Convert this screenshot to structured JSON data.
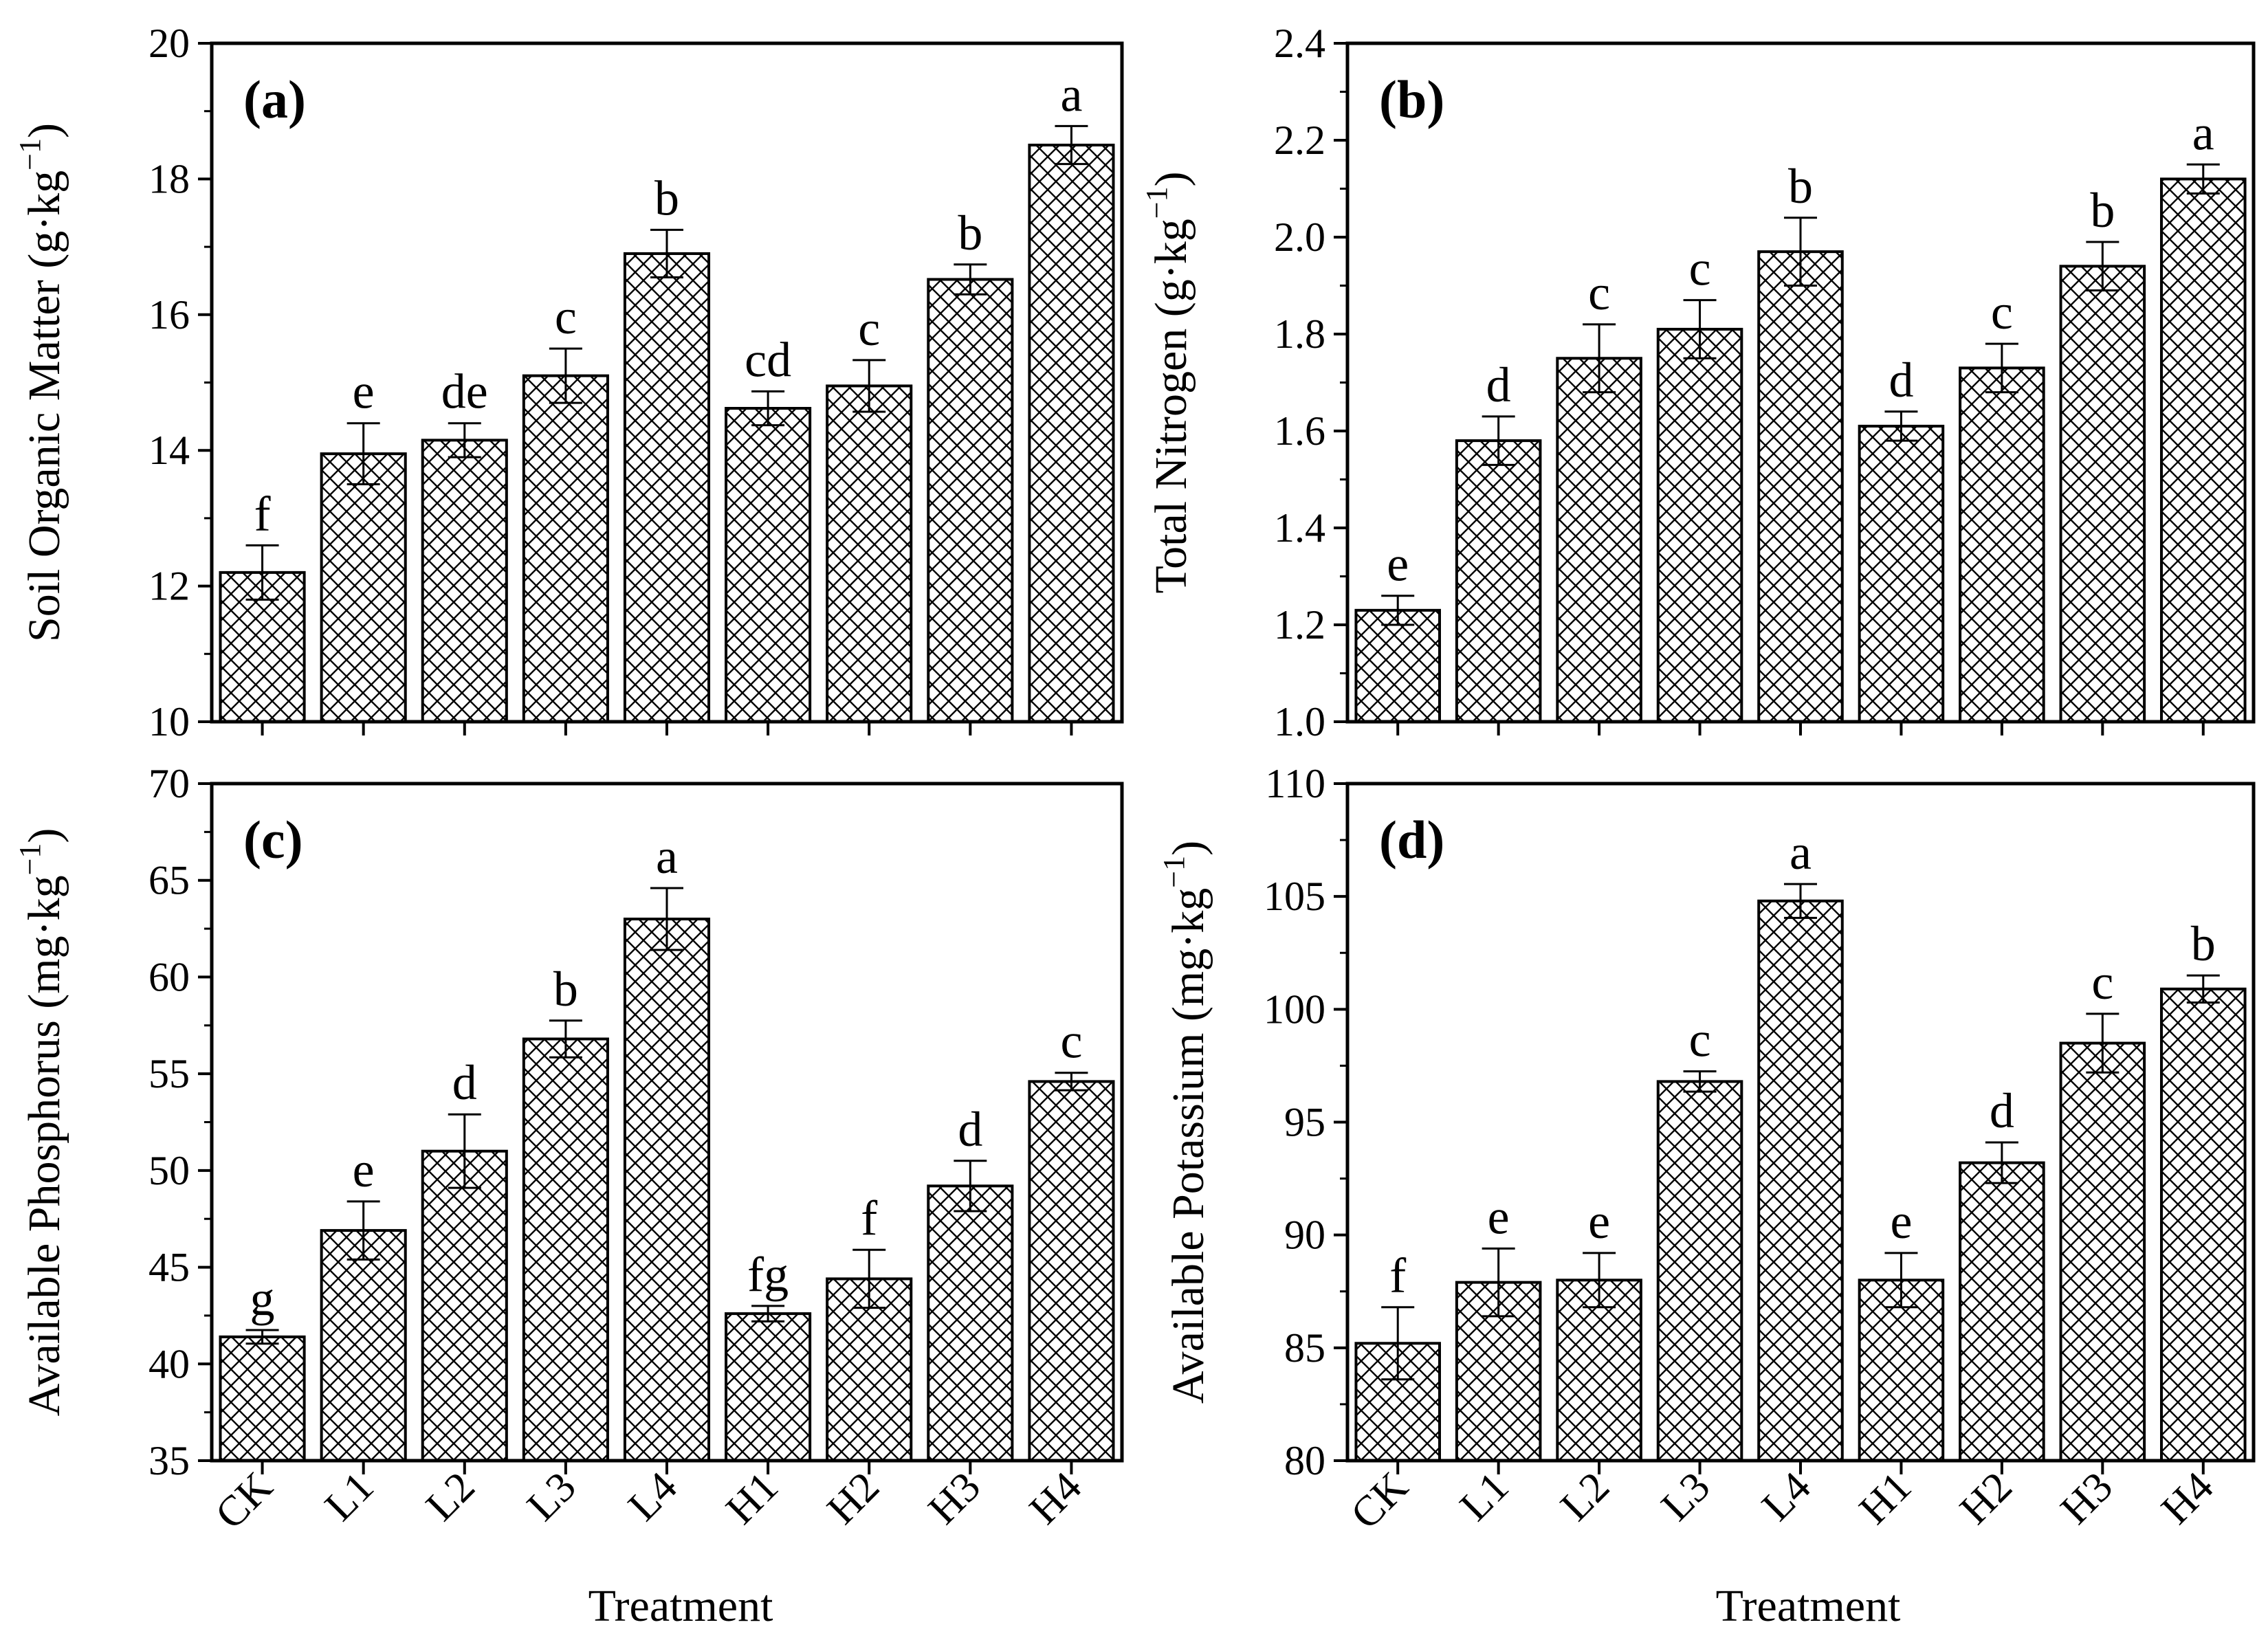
{
  "figure": {
    "xlabel": "Treatment",
    "categories": [
      "CK",
      "L1",
      "L2",
      "L3",
      "L4",
      "H1",
      "H2",
      "H3",
      "H4"
    ]
  },
  "chart_data": [
    {
      "type": "bar",
      "panel_label": "(a)",
      "ylabel_main": "Soil Organic  Matter (g·kg",
      "ylabel_sup": "−1",
      "ylabel_close": ")",
      "ylim": [
        10,
        20
      ],
      "yticks": [
        10,
        12,
        14,
        16,
        18,
        20
      ],
      "ytick_labels": [
        "10",
        "12",
        "14",
        "16",
        "18",
        "20"
      ],
      "categories": [
        "CK",
        "L1",
        "L2",
        "L3",
        "L4",
        "H1",
        "H2",
        "H3",
        "H4"
      ],
      "values": [
        12.2,
        13.95,
        14.15,
        15.1,
        16.9,
        14.62,
        14.95,
        16.52,
        18.5
      ],
      "errors": [
        0.4,
        0.45,
        0.25,
        0.4,
        0.35,
        0.25,
        0.38,
        0.22,
        0.28
      ],
      "letters": [
        "f",
        "e",
        "de",
        "c",
        "b",
        "cd",
        "c",
        "b",
        "a"
      ]
    },
    {
      "type": "bar",
      "panel_label": "(b)",
      "ylabel_main": "Total Nitrogen (g·kg",
      "ylabel_sup": "−1",
      "ylabel_close": ")",
      "ylim": [
        1.0,
        2.4
      ],
      "yticks": [
        1.0,
        1.2,
        1.4,
        1.6,
        1.8,
        2.0,
        2.2,
        2.4
      ],
      "ytick_labels": [
        "1.0",
        "1.2",
        "1.4",
        "1.6",
        "1.8",
        "2.0",
        "2.2",
        "2.4"
      ],
      "categories": [
        "CK",
        "L1",
        "L2",
        "L3",
        "L4",
        "H1",
        "H2",
        "H3",
        "H4"
      ],
      "values": [
        1.23,
        1.58,
        1.75,
        1.81,
        1.97,
        1.61,
        1.73,
        1.94,
        2.12
      ],
      "errors": [
        0.03,
        0.05,
        0.07,
        0.06,
        0.07,
        0.03,
        0.05,
        0.05,
        0.03
      ],
      "letters": [
        "e",
        "d",
        "c",
        "c",
        "b",
        "d",
        "c",
        "b",
        "a"
      ]
    },
    {
      "type": "bar",
      "panel_label": "(c)",
      "ylabel_main": "Available Phosphorus (mg·kg",
      "ylabel_sup": "−1",
      "ylabel_close": ")",
      "ylim": [
        35,
        70
      ],
      "yticks": [
        35,
        40,
        45,
        50,
        55,
        60,
        65,
        70
      ],
      "ytick_labels": [
        "35",
        "40",
        "45",
        "50",
        "55",
        "60",
        "65",
        "70"
      ],
      "categories": [
        "CK",
        "L1",
        "L2",
        "L3",
        "L4",
        "H1",
        "H2",
        "H3",
        "H4"
      ],
      "values": [
        41.4,
        46.9,
        51.0,
        56.8,
        63.0,
        42.6,
        44.4,
        49.2,
        54.6
      ],
      "errors": [
        0.35,
        1.5,
        1.9,
        0.95,
        1.6,
        0.4,
        1.5,
        1.3,
        0.45
      ],
      "letters": [
        "g",
        "e",
        "d",
        "b",
        "a",
        "fg",
        "f",
        "d",
        "c"
      ]
    },
    {
      "type": "bar",
      "panel_label": "(d)",
      "ylabel_main": "Available Potassium (mg·kg",
      "ylabel_sup": "−1",
      "ylabel_close": ")",
      "ylim": [
        80,
        110
      ],
      "yticks": [
        80,
        85,
        90,
        95,
        100,
        105,
        110
      ],
      "ytick_labels": [
        "80",
        "85",
        "90",
        "95",
        "100",
        "105",
        "110"
      ],
      "categories": [
        "CK",
        "L1",
        "L2",
        "L3",
        "L4",
        "H1",
        "H2",
        "H3",
        "H4"
      ],
      "values": [
        85.2,
        87.9,
        88.0,
        96.8,
        104.8,
        88.0,
        93.2,
        98.5,
        100.9
      ],
      "errors": [
        1.6,
        1.5,
        1.2,
        0.45,
        0.75,
        1.2,
        0.9,
        1.3,
        0.6
      ],
      "letters": [
        "f",
        "e",
        "e",
        "c",
        "a",
        "e",
        "d",
        "c",
        "b"
      ]
    }
  ]
}
